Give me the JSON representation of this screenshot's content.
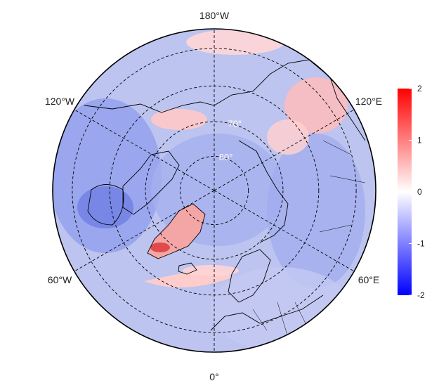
{
  "map": {
    "projection": "north-polar-stereographic",
    "graticule_style": "dashed",
    "lon_labels": [
      {
        "text": "180°W",
        "lon": 180
      },
      {
        "text": "120°E",
        "lon": 120
      },
      {
        "text": "60°E",
        "lon": 60
      },
      {
        "text": "0°",
        "lon": 0
      },
      {
        "text": "60°W",
        "lon": -60
      },
      {
        "text": "120°W",
        "lon": -120
      }
    ],
    "lat_labels": [
      {
        "text": "70°",
        "lat": 70
      },
      {
        "text": "80°",
        "lat": 80
      }
    ],
    "latitude_circles": [
      50,
      60,
      70,
      80
    ]
  },
  "colorbar": {
    "min": -2,
    "max": 2,
    "ticks": [
      "2",
      "1",
      "0",
      "-1",
      "-2"
    ],
    "colors": {
      "low": "#0000ff",
      "mid": "#ffffff",
      "high": "#ff0000"
    }
  }
}
